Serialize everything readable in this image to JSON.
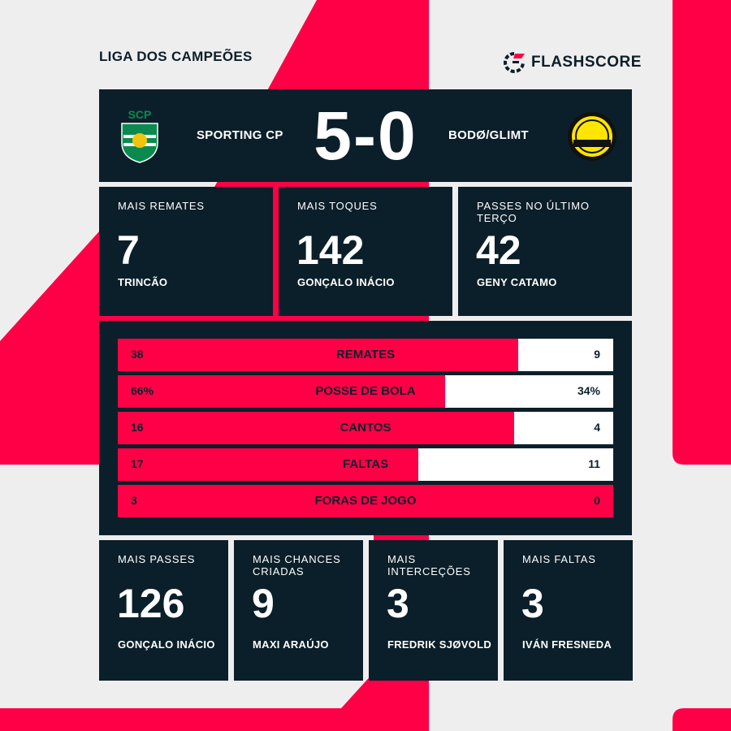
{
  "colors": {
    "accent": "#ff0046",
    "panel": "#0b1f2a",
    "background": "#efeeef"
  },
  "header": {
    "league": "LIGA DOS CAMPEÕES",
    "brand": "FLASHSCORE"
  },
  "match": {
    "home": "SPORTING CP",
    "away": "BODØ/GLIMT",
    "score": "5-0",
    "home_logo": "SCP",
    "away_logo": "BODØ 1916"
  },
  "top_stats": [
    {
      "label": "MAIS REMATES",
      "value": "7",
      "player": "TRINCÃO"
    },
    {
      "label": "MAIS TOQUES",
      "value": "142",
      "player": "GONÇALO INÁCIO"
    },
    {
      "label": "PASSES NO ÚLTIMO TERÇO",
      "value": "42",
      "player": "GENY CATAMO"
    }
  ],
  "bars": [
    {
      "name": "REMATES",
      "home": "38",
      "away": "9",
      "home_share": 0.809
    },
    {
      "name": "POSSE DE BOLA",
      "home": "66%",
      "away": "34%",
      "home_share": 0.66
    },
    {
      "name": "CANTOS",
      "home": "16",
      "away": "4",
      "home_share": 0.8
    },
    {
      "name": "FALTAS",
      "home": "17",
      "away": "11",
      "home_share": 0.607
    },
    {
      "name": "FORAS DE JOGO",
      "home": "3",
      "away": "0",
      "home_share": 1.0
    }
  ],
  "bottom_stats": [
    {
      "label": "MAIS PASSES",
      "value": "126",
      "player": "GONÇALO INÁCIO"
    },
    {
      "label": "MAIS CHANCES CRIADAS",
      "value": "9",
      "player": "MAXI ARAÚJO"
    },
    {
      "label": "MAIS INTERCEÇÕES",
      "value": "3",
      "player": "FREDRIK SJØVOLD"
    },
    {
      "label": "MAIS FALTAS",
      "value": "3",
      "player": "IVÁN FRESNEDA"
    }
  ]
}
